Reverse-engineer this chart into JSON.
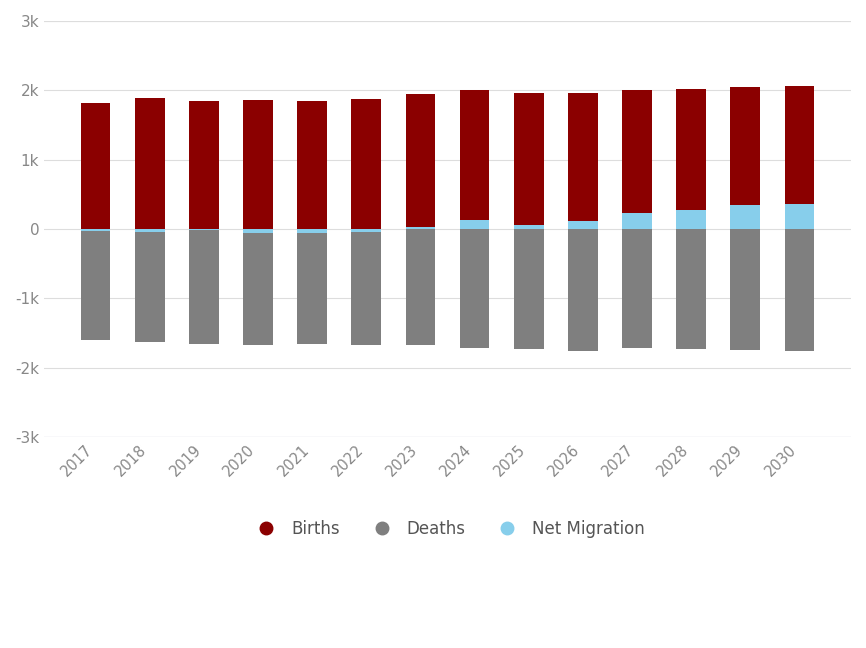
{
  "years": [
    2017,
    2018,
    2019,
    2020,
    2021,
    2022,
    2023,
    2024,
    2025,
    2026,
    2027,
    2028,
    2029,
    2030
  ],
  "births": [
    1820,
    1890,
    1850,
    1860,
    1840,
    1880,
    1950,
    2000,
    1960,
    1960,
    2010,
    2020,
    2050,
    2060
  ],
  "deaths": [
    -1600,
    -1630,
    -1660,
    -1680,
    -1660,
    -1670,
    -1680,
    -1720,
    -1730,
    -1760,
    -1720,
    -1730,
    -1740,
    -1760
  ],
  "net_migration": [
    -30,
    -50,
    -20,
    -60,
    -60,
    -40,
    30,
    130,
    60,
    110,
    230,
    280,
    340,
    360
  ],
  "births_color": "#8B0000",
  "deaths_color": "#7F7F7F",
  "net_migration_color": "#87CEEB",
  "background_color": "#FFFFFF",
  "ylim": [
    -3000,
    3000
  ],
  "yticks": [
    -3000,
    -2000,
    -1000,
    0,
    1000,
    2000,
    3000
  ],
  "ytick_labels": [
    "-3k",
    "-2k",
    "-1k",
    "0",
    "1k",
    "2k",
    "3k"
  ],
  "legend_labels": [
    "Births",
    "Deaths",
    "Net Migration"
  ],
  "bar_width": 0.55
}
